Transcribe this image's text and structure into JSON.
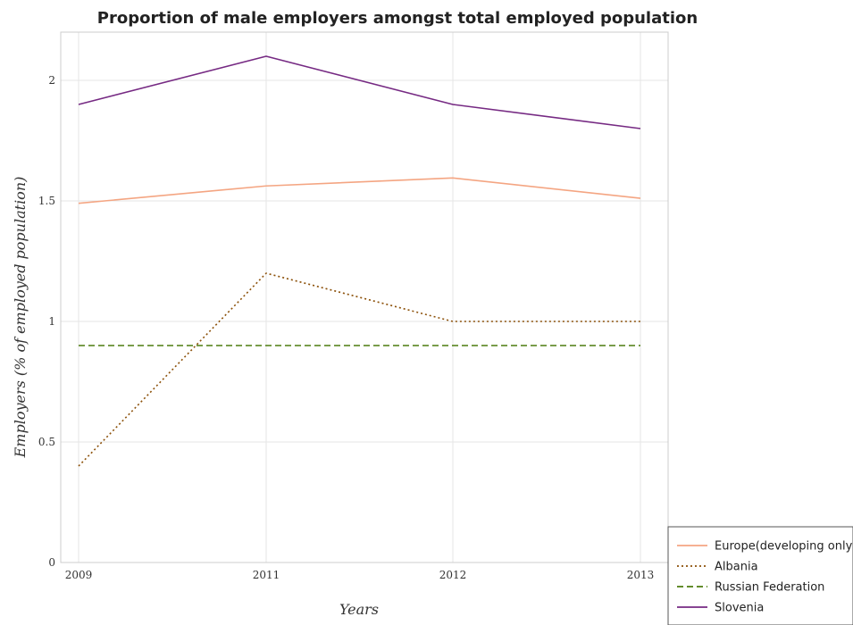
{
  "chart_data": {
    "type": "line",
    "title": "Proportion of male employers amongst total employed population",
    "xlabel": "Years",
    "ylabel": "Employers (% of employed population)",
    "categories": [
      "2009",
      "2011",
      "2012",
      "2013"
    ],
    "ylim": [
      0,
      2.2
    ],
    "yticks": [
      0,
      0.5,
      1,
      1.5,
      2
    ],
    "ytick_labels": [
      "0",
      "0.5",
      "1",
      "1.5",
      "2"
    ],
    "grid": true,
    "legend_position": "bottom-right",
    "series": [
      {
        "name": "Europe(developing only)",
        "values": [
          1.49,
          1.562,
          1.595,
          1.511
        ],
        "color": "#f4a582",
        "style": "solid"
      },
      {
        "name": "Albania",
        "values": [
          0.4,
          1.2,
          1.0,
          1.0
        ],
        "color": "#8c510a",
        "style": "dotted"
      },
      {
        "name": "Russian Federation",
        "values": [
          0.9,
          0.9,
          0.9,
          0.9
        ],
        "color": "#4d7c0f",
        "style": "dashed"
      },
      {
        "name": "Slovenia",
        "values": [
          1.9,
          2.1,
          1.9,
          1.8
        ],
        "color": "#762a83",
        "style": "solid"
      }
    ]
  }
}
